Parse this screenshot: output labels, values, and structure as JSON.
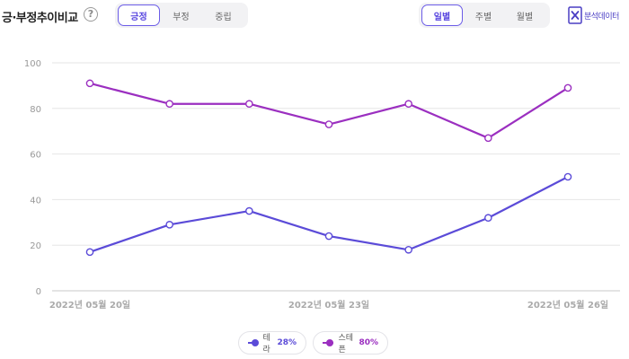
{
  "header": {
    "title": "긍·부정추이비교",
    "help_icon": "?",
    "sentiment_tabs": [
      {
        "label": "긍정",
        "active": true
      },
      {
        "label": "부정",
        "active": false
      },
      {
        "label": "중립",
        "active": false
      }
    ],
    "period_tabs": [
      {
        "label": "일별",
        "active": true
      },
      {
        "label": "주별",
        "active": false
      },
      {
        "label": "월별",
        "active": false
      }
    ],
    "export_label": "분석데이터",
    "export_icon": "excel-icon"
  },
  "colors": {
    "accent": "#5a48e0",
    "series_1": "#5b4bd8",
    "series_2": "#9b2fc0"
  },
  "chart_data": {
    "type": "line",
    "x": [
      "2022년 05월 20일",
      "",
      "",
      "2022년 05월 23일",
      "",
      "",
      "2022년 05월 26일"
    ],
    "x_tick_labels": [
      "2022년 05월 20일",
      "2022년 05월 23일",
      "2022년 05월 26일"
    ],
    "series": [
      {
        "name": "테라",
        "values": [
          17,
          29,
          35,
          24,
          18,
          32,
          50
        ],
        "color": "#5b4bd8"
      },
      {
        "name": "스테픈",
        "values": [
          91,
          82,
          82,
          73,
          82,
          67,
          89
        ],
        "color": "#9b2fc0"
      }
    ],
    "y_ticks": [
      "0",
      "20",
      "40",
      "60",
      "80",
      "100"
    ],
    "ylim": [
      0,
      100
    ],
    "grid": true,
    "legend_placement": "bottom-center"
  },
  "legend": [
    {
      "name": "테라",
      "percent": "28%"
    },
    {
      "name": "스테픈",
      "percent": "80%"
    }
  ]
}
